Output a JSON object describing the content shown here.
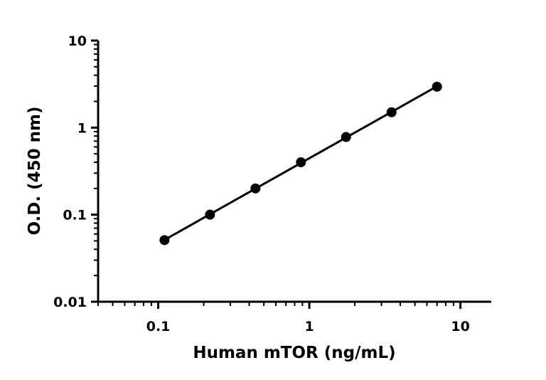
{
  "chart_data": {
    "type": "scatter",
    "title": "",
    "xlabel": "Human mTOR (ng/mL)",
    "ylabel": "O.D. (450 nm)",
    "x_scale": "log",
    "y_scale": "log",
    "xlim": [
      0.04,
      16
    ],
    "ylim": [
      0.01,
      10
    ],
    "x_ticks": [
      {
        "value": 0.1,
        "label": "0.1"
      },
      {
        "value": 1,
        "label": "1"
      },
      {
        "value": 10,
        "label": "10"
      }
    ],
    "y_ticks": [
      {
        "value": 0.01,
        "label": "0.01"
      },
      {
        "value": 0.1,
        "label": "0.1"
      },
      {
        "value": 1,
        "label": "1"
      },
      {
        "value": 10,
        "label": "10"
      }
    ],
    "grid": false,
    "legend": "none",
    "series": [
      {
        "x": [
          0.11,
          0.22,
          0.44,
          0.88,
          1.75,
          3.5,
          7.0
        ],
        "y": [
          0.051,
          0.1,
          0.2,
          0.4,
          0.78,
          1.5,
          2.95
        ],
        "fit_line": true,
        "color": "#000000"
      }
    ]
  }
}
